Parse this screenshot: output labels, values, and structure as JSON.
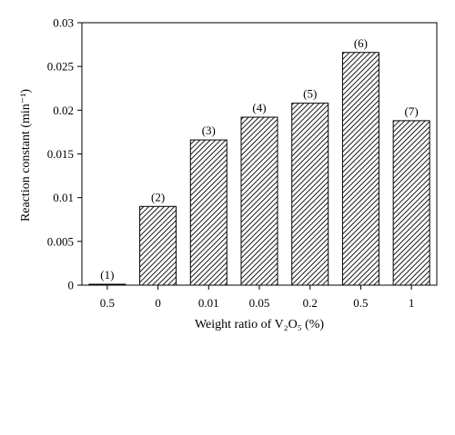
{
  "chart_data": {
    "type": "bar",
    "categories": [
      "0.5",
      "0",
      "0.01",
      "0.05",
      "0.2",
      "0.5",
      "1"
    ],
    "values": [
      0.0001,
      0.009,
      0.0166,
      0.0192,
      0.0208,
      0.0266,
      0.0188
    ],
    "bar_labels": [
      "(1)",
      "(2)",
      "(3)",
      "(4)",
      "(5)",
      "(6)",
      "(7)"
    ],
    "title": "",
    "xlabel": "Weight ratio of V₂O₅ (%)",
    "ylabel": "Reaction constant (min⁻¹)",
    "ylim": [
      0,
      0.03
    ],
    "yticks": [
      "0",
      "0.005",
      "0.01",
      "0.015",
      "0.02",
      "0.025",
      "0.03"
    ],
    "grid": false,
    "bar_fill": "diagonal-hatch",
    "bar_color": "#000000"
  }
}
